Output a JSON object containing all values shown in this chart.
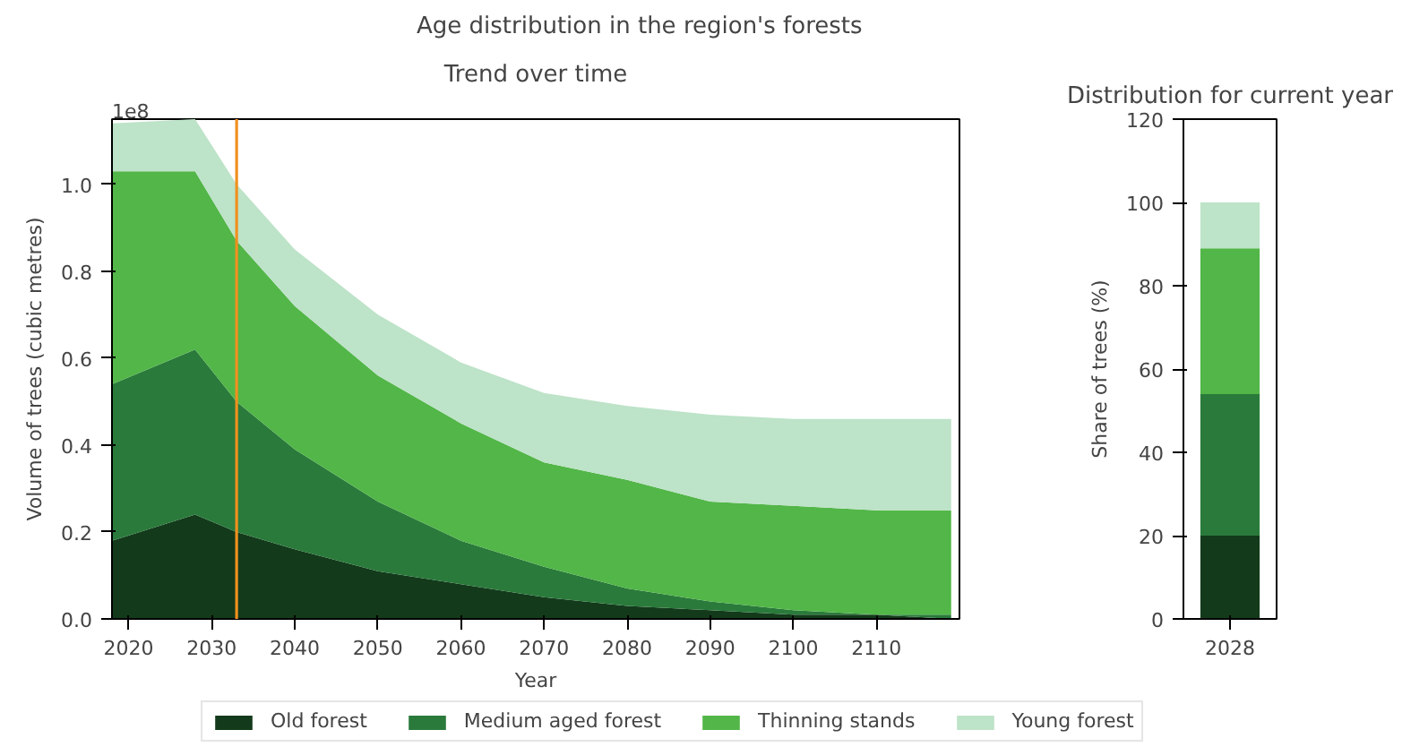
{
  "chart_data": [
    {
      "type": "area",
      "title": "Age distribution in the region's forests",
      "subtitle": "Trend over time",
      "xlabel": "Year",
      "ylabel": "Volume of trees (cubic metres)",
      "stacked": true,
      "legend": "bottom",
      "x": [
        2018,
        2028,
        2033,
        2040,
        2050,
        2060,
        2070,
        2080,
        2090,
        2100,
        2110,
        2119
      ],
      "series": [
        {
          "name": "Old forest",
          "color": "#133a1b",
          "values": [
            0.18,
            0.24,
            0.2,
            0.16,
            0.11,
            0.08,
            0.05,
            0.03,
            0.02,
            0.01,
            0.01,
            0
          ]
        },
        {
          "name": "Medium aged forest",
          "color": "#2a7a3b",
          "values": [
            0.36,
            0.38,
            0.3,
            0.23,
            0.16,
            0.1,
            0.07,
            0.04,
            0.02,
            0.01,
            0,
            0.01
          ]
        },
        {
          "name": "Thinning stands",
          "color": "#52b648",
          "values": [
            0.49,
            0.41,
            0.37,
            0.33,
            0.29,
            0.27,
            0.24,
            0.25,
            0.23,
            0.24,
            0.24,
            0.24
          ]
        },
        {
          "name": "Young forest",
          "color": "#bde3c8",
          "values": [
            0.11,
            0.12,
            0.13,
            0.13,
            0.14,
            0.14,
            0.16,
            0.17,
            0.2,
            0.2,
            0.21,
            0.21
          ]
        }
      ],
      "xlim": [
        2018,
        2120
      ],
      "xticks": [
        2020,
        2030,
        2040,
        2050,
        2060,
        2070,
        2080,
        2090,
        2100,
        2110
      ],
      "ylim": [
        0,
        1.15
      ],
      "yticks": [
        {
          "value": 0,
          "label": "0.0"
        },
        0.2,
        0.4,
        0.6,
        0.8,
        {
          "value": 1,
          "label": "1.0"
        }
      ],
      "ref_lines": [
        {
          "axis": "x",
          "value": 2033,
          "label": null,
          "color": "#f0901e"
        }
      ],
      "annotations": [
        "1e8"
      ]
    },
    {
      "type": "bar",
      "title": "Distribution for current year",
      "ylabel": "Share of trees (%)",
      "stacked": true,
      "categories": [
        "2028"
      ],
      "series": [
        {
          "color": "#133a1b",
          "values": [
            20
          ]
        },
        {
          "color": "#2a7a3b",
          "values": [
            34
          ]
        },
        {
          "color": "#52b648",
          "values": [
            35
          ]
        },
        {
          "color": "#bde3c8",
          "values": [
            11
          ]
        }
      ],
      "ylim": [
        0,
        120
      ],
      "yticks": [
        0,
        20,
        40,
        60,
        80,
        100,
        120
      ]
    }
  ]
}
